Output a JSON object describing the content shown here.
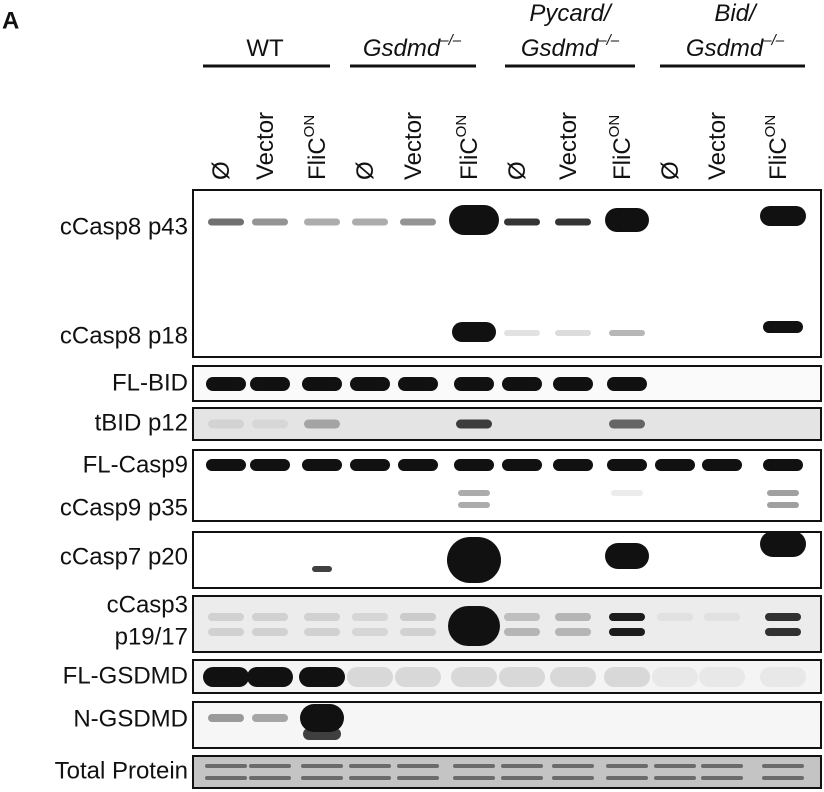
{
  "panel_label": "A",
  "groups": [
    {
      "lines": [
        "WT"
      ]
    },
    {
      "lines": [
        "Gsdmd"
      ],
      "superscript": "–/–"
    },
    {
      "lines": [
        "Pycard/",
        "Gsdmd"
      ],
      "superscript": "–/–"
    },
    {
      "lines": [
        "Bid/",
        "Gsdmd"
      ],
      "superscript": "–/–"
    }
  ],
  "lanes": [
    {
      "text": "Ø"
    },
    {
      "text": "Vector"
    },
    {
      "text": "FliC",
      "superscript": "ON"
    },
    {
      "text": "Ø"
    },
    {
      "text": "Vector"
    },
    {
      "text": "FliC",
      "superscript": "ON"
    },
    {
      "text": "Ø"
    },
    {
      "text": "Vector"
    },
    {
      "text": "FliC",
      "superscript": "ON"
    },
    {
      "text": "Ø"
    },
    {
      "text": "Vector"
    },
    {
      "text": "FliC",
      "superscript": "ON"
    }
  ],
  "blots": [
    {
      "labels": [
        "cCasp8 p43",
        "cCasp8 p18"
      ]
    },
    {
      "labels": [
        "FL-BID"
      ]
    },
    {
      "labels": [
        "tBID p12"
      ]
    },
    {
      "labels": [
        "FL-Casp9",
        "cCasp9 p35"
      ]
    },
    {
      "labels": [
        "cCasp7 p20"
      ]
    },
    {
      "labels": [
        "cCasp3",
        "p19/17"
      ]
    },
    {
      "labels": [
        "FL-GSDMD"
      ]
    },
    {
      "labels": [
        "N-GSDMD"
      ]
    },
    {
      "labels": [
        "Total Protein"
      ]
    }
  ]
}
